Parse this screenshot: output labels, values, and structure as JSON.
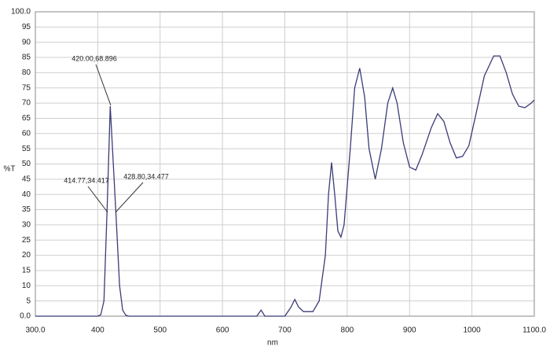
{
  "chart_data": {
    "type": "line",
    "x_label": "nm",
    "y_label": "%T",
    "color": "#3b3b78",
    "grid": true,
    "xlim": [
      300,
      1100
    ],
    "ylim": [
      0,
      100
    ],
    "xticks": [
      {
        "value": 300,
        "label": "300.0"
      },
      400,
      500,
      600,
      700,
      800,
      900,
      1000,
      {
        "value": 1100,
        "label": "1100.0"
      }
    ],
    "yticks": [
      {
        "value": 0,
        "label": "0.0"
      },
      5,
      10,
      15,
      20,
      25,
      30,
      35,
      40,
      45,
      50,
      55,
      60,
      65,
      70,
      75,
      80,
      85,
      90,
      95,
      {
        "value": 100,
        "label": "100.0"
      }
    ],
    "annotations": [
      "420.00,68.896",
      "414.77,34.417",
      "428.80,34.477"
    ],
    "x": [
      300,
      350,
      400,
      405,
      410,
      415,
      420,
      425,
      429,
      435,
      440,
      445,
      450,
      550,
      655,
      662,
      668,
      700,
      710,
      716,
      722,
      730,
      745,
      755,
      765,
      770,
      775,
      780,
      785,
      790,
      795,
      805,
      812,
      820,
      828,
      835,
      845,
      855,
      865,
      873,
      880,
      890,
      900,
      910,
      920,
      935,
      945,
      955,
      965,
      975,
      985,
      995,
      1005,
      1020,
      1035,
      1045,
      1055,
      1065,
      1075,
      1085,
      1095,
      1100
    ],
    "values": [
      0,
      0,
      0,
      0.5,
      5,
      35,
      69,
      50,
      34.5,
      10,
      2,
      0.3,
      0,
      0,
      0,
      2,
      0,
      0,
      3,
      5.5,
      3,
      1.5,
      1.5,
      5,
      20,
      40,
      50.5,
      40,
      28,
      26,
      30,
      55,
      75,
      81.5,
      72,
      55,
      45,
      55,
      70,
      75,
      70,
      57,
      49,
      48,
      53,
      62,
      66.5,
      64,
      57,
      52,
      52.5,
      56,
      65,
      79,
      85.5,
      85.5,
      80,
      73,
      69,
      68.5,
      70,
      71
    ]
  }
}
